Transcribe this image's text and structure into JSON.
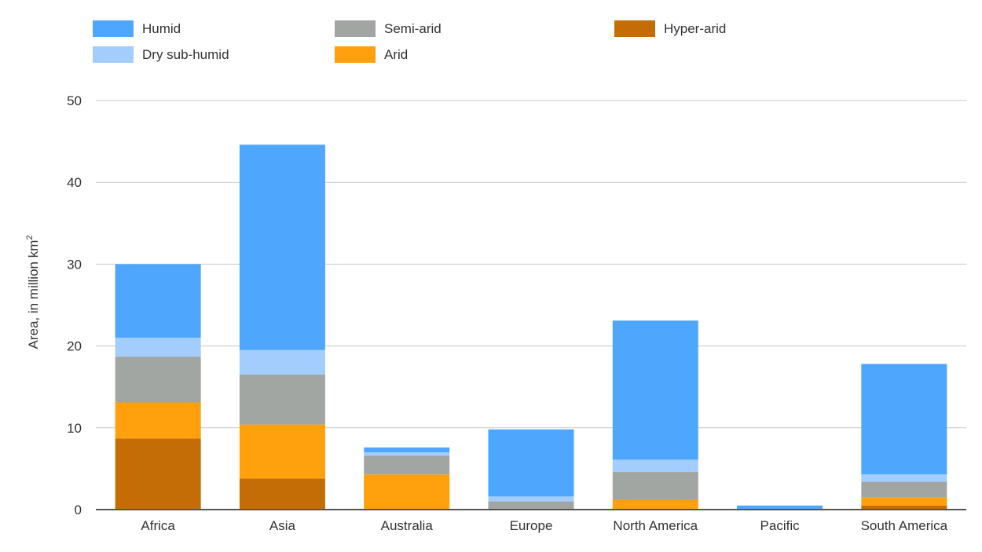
{
  "chart_data": {
    "type": "bar",
    "stacked": true,
    "title": "",
    "xlabel": "",
    "ylabel": "Area, in million km",
    "ylabel_superscript": "2",
    "ylim": [
      0,
      50
    ],
    "yticks": [
      "0",
      "10",
      "20",
      "30",
      "40",
      "50"
    ],
    "grid": "horizontal",
    "legend_position": "top",
    "categories": [
      "Africa",
      "Asia",
      "Australia",
      "Europe",
      "North America",
      "Pacific",
      "South America"
    ],
    "series": [
      {
        "name": "Hyper-arid",
        "color": "#c46d06",
        "values": [
          8.7,
          3.8,
          0.0,
          0.0,
          0.1,
          0.0,
          0.5
        ]
      },
      {
        "name": "Arid",
        "color": "#ffa00c",
        "values": [
          4.4,
          6.6,
          4.3,
          0.1,
          1.1,
          0.0,
          1.0
        ]
      },
      {
        "name": "Semi-arid",
        "color": "#a1a6a3",
        "values": [
          5.6,
          6.1,
          2.3,
          0.9,
          3.4,
          0.0,
          1.9
        ]
      },
      {
        "name": "Dry sub-humid",
        "color": "#a2cdfc",
        "values": [
          2.3,
          3.0,
          0.4,
          0.6,
          1.5,
          0.0,
          0.9
        ]
      },
      {
        "name": "Humid",
        "color": "#4ea7fc",
        "values": [
          9.0,
          25.1,
          0.6,
          8.2,
          17.0,
          0.5,
          13.5
        ]
      }
    ]
  }
}
